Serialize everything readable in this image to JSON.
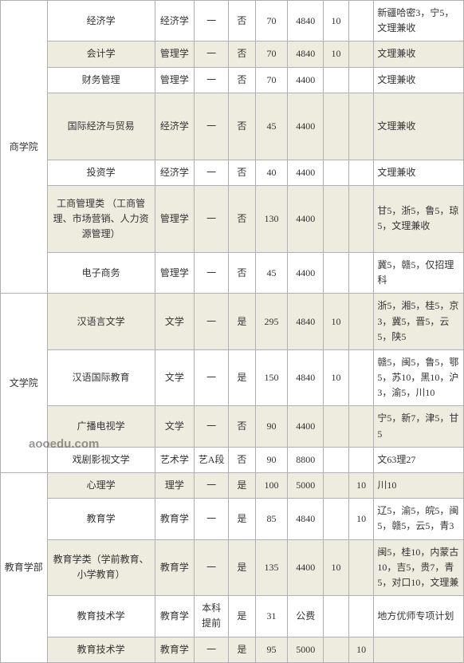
{
  "watermark": "aooedu.com",
  "faculties": [
    {
      "name": "商学院",
      "rows": 7
    },
    {
      "name": "文学院",
      "rows": 4
    },
    {
      "name": "教育学部",
      "rows": 5
    }
  ],
  "rows": [
    {
      "alt": false,
      "major": "经济学",
      "discipline": "经济学",
      "batch": "一",
      "exam": "否",
      "plan": "70",
      "fee": "4840",
      "n1": "10",
      "n2": "",
      "remark": "新疆哈密3，宁5，文理兼收"
    },
    {
      "alt": true,
      "major": "会计学",
      "discipline": "管理学",
      "batch": "一",
      "exam": "否",
      "plan": "70",
      "fee": "4840",
      "n1": "10",
      "n2": "",
      "remark": "文理兼收"
    },
    {
      "alt": false,
      "major": "财务管理",
      "discipline": "管理学",
      "batch": "一",
      "exam": "否",
      "plan": "70",
      "fee": "4400",
      "n1": "",
      "n2": "",
      "remark": "文理兼收"
    },
    {
      "alt": true,
      "major": "国际经济与贸易",
      "discipline": "经济学",
      "batch": "一",
      "exam": "否",
      "plan": "45",
      "fee": "4400",
      "n1": "",
      "n2": "",
      "remark": "文理兼收",
      "tall": true
    },
    {
      "alt": false,
      "major": "投资学",
      "discipline": "经济学",
      "batch": "一",
      "exam": "否",
      "plan": "40",
      "fee": "4400",
      "n1": "",
      "n2": "",
      "remark": "文理兼收"
    },
    {
      "alt": true,
      "major": "工商管理类\n（工商管理、市场营销、人力资源管理）",
      "discipline": "管理学",
      "batch": "一",
      "exam": "否",
      "plan": "130",
      "fee": "4400",
      "n1": "",
      "n2": "",
      "remark": "甘5，浙5，鲁5，琼5，文理兼收",
      "tall": true
    },
    {
      "alt": false,
      "major": "电子商务",
      "discipline": "管理学",
      "batch": "一",
      "exam": "否",
      "plan": "45",
      "fee": "4400",
      "n1": "",
      "n2": "",
      "remark": "冀5，赣5，仅招理科"
    },
    {
      "alt": true,
      "major": "汉语言文学",
      "discipline": "文学",
      "batch": "一",
      "exam": "是",
      "plan": "295",
      "fee": "4840",
      "n1": "10",
      "n2": "",
      "remark": "浙5，湘5，桂5，京3，冀5，晋5，云5，陕5"
    },
    {
      "alt": false,
      "major": "汉语国际教育",
      "discipline": "文学",
      "batch": "一",
      "exam": "是",
      "plan": "150",
      "fee": "4840",
      "n1": "10",
      "n2": "",
      "remark": "赣5，闽5，鲁5，鄂5，苏10，黑10，沪3，渝5，川10"
    },
    {
      "alt": true,
      "major": "广播电视学",
      "discipline": "文学",
      "batch": "一",
      "exam": "否",
      "plan": "90",
      "fee": "4400",
      "n1": "",
      "n2": "",
      "remark": "宁5，新7，津5，甘5"
    },
    {
      "alt": false,
      "major": "戏剧影视文学",
      "discipline": "艺术学",
      "batch": "艺A段",
      "exam": "否",
      "plan": "90",
      "fee": "8800",
      "n1": "",
      "n2": "",
      "remark": "文63理27"
    },
    {
      "alt": true,
      "major": "心理学",
      "discipline": "理学",
      "batch": "一",
      "exam": "是",
      "plan": "100",
      "fee": "5000",
      "n1": "",
      "n2": "10",
      "remark": "川10"
    },
    {
      "alt": false,
      "major": "教育学",
      "discipline": "教育学",
      "batch": "一",
      "exam": "是",
      "plan": "85",
      "fee": "4840",
      "n1": "",
      "n2": "10",
      "remark": "辽5，渝5，皖5，闽5，赣5，云5，青3"
    },
    {
      "alt": true,
      "major": "教育学类（学前教育、小学教育）",
      "discipline": "教育学",
      "batch": "一",
      "exam": "是",
      "plan": "135",
      "fee": "4400",
      "n1": "10",
      "n2": "",
      "remark": "闽5，桂10，内蒙古10，吉5，贵7，青5，对口10，文理兼"
    },
    {
      "alt": false,
      "major": "教育技术学",
      "discipline": "教育学",
      "batch": "本科提前",
      "exam": "是",
      "plan": "31",
      "fee": "公费",
      "n1": "",
      "n2": "",
      "remark": "地方优师专项计划"
    },
    {
      "alt": true,
      "major": "教育技术学",
      "discipline": "教育学",
      "batch": "一",
      "exam": "是",
      "plan": "95",
      "fee": "5000",
      "n1": "",
      "n2": "10",
      "remark": ""
    }
  ]
}
